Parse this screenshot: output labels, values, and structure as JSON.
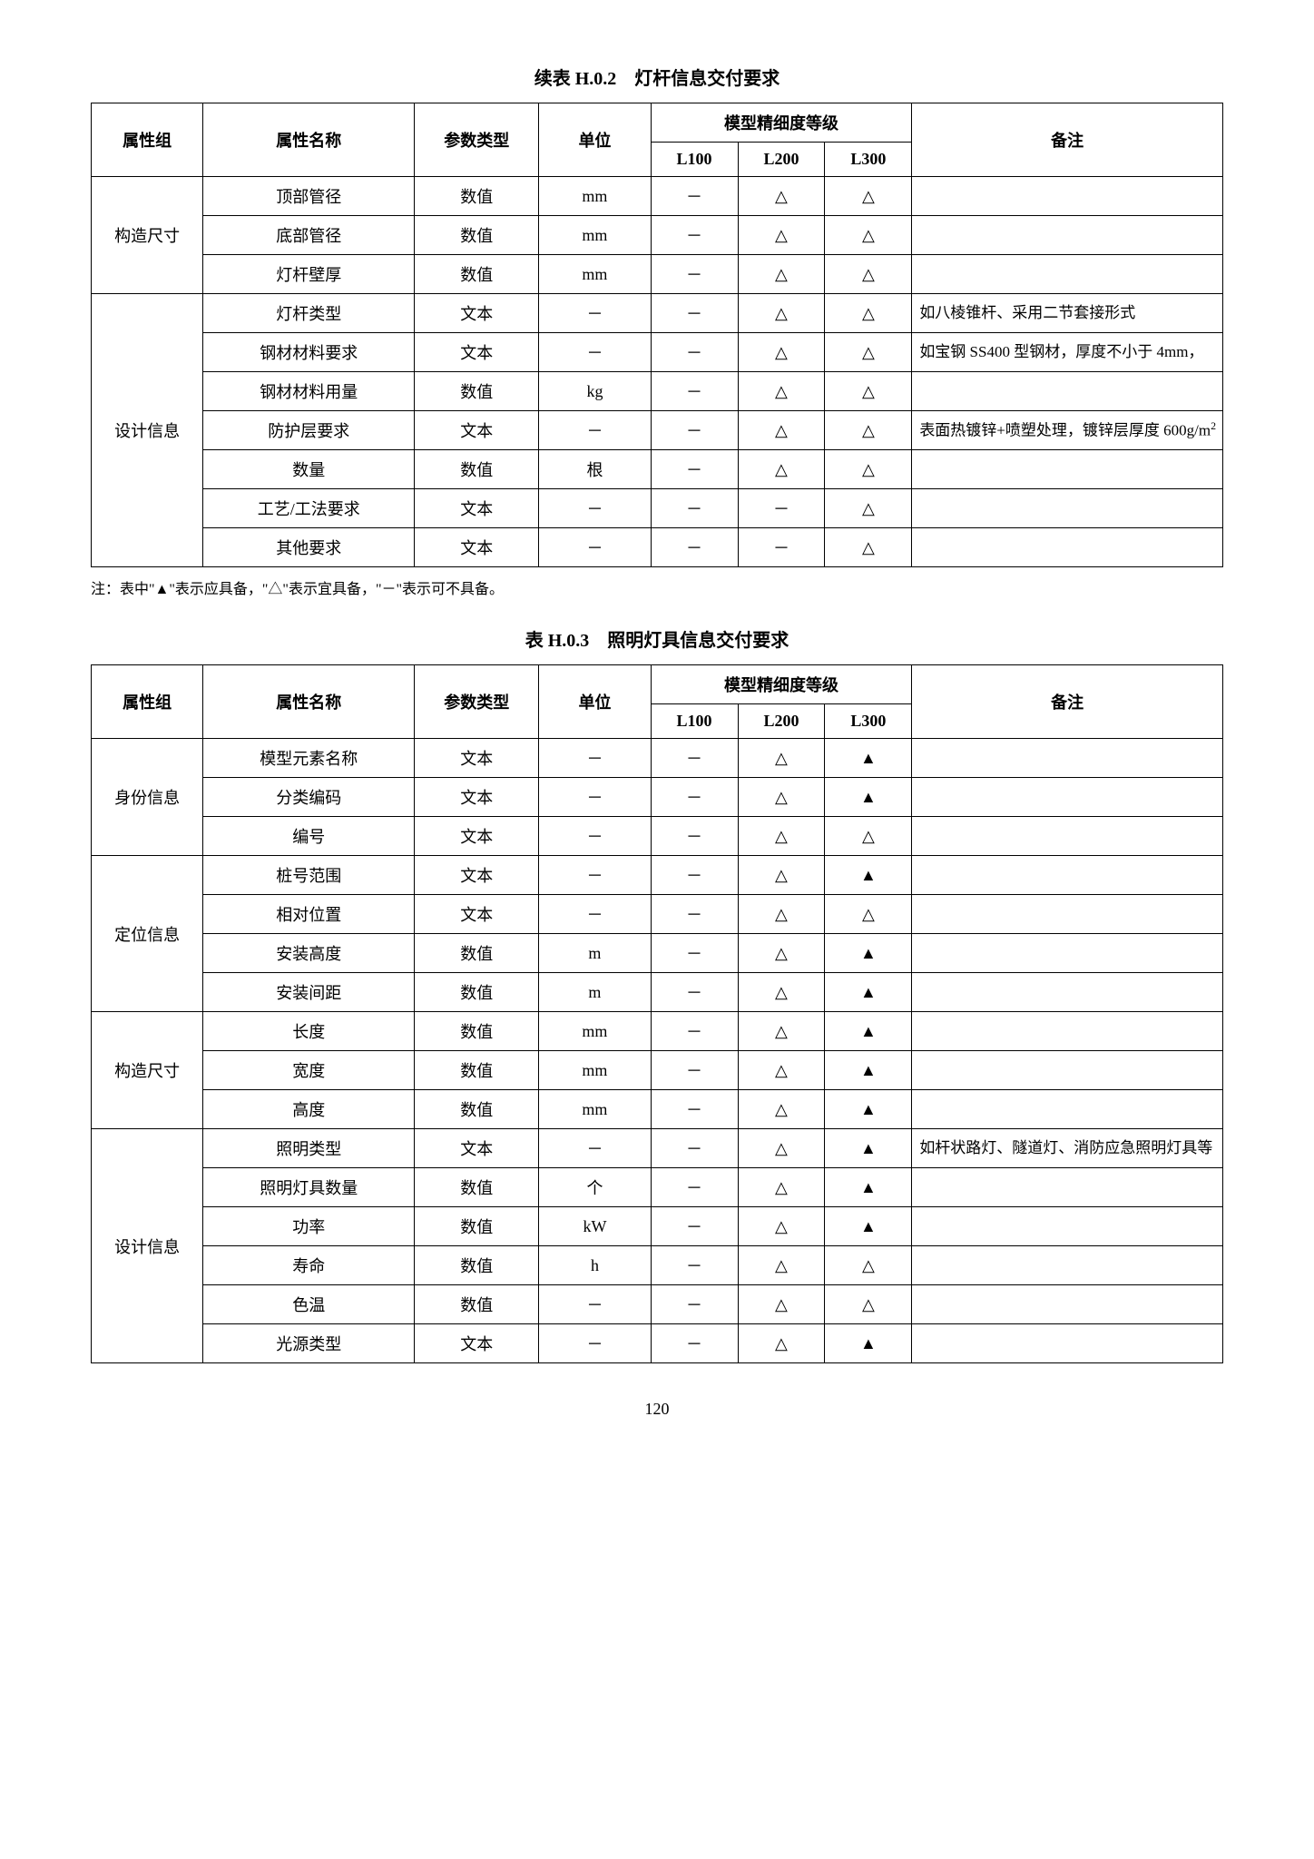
{
  "page_number": "120",
  "note_text": "注：表中\"▲\"表示应具备，\"△\"表示宜具备，\"－\"表示可不具备。",
  "columns": {
    "group": "属性组",
    "name": "属性名称",
    "type": "参数类型",
    "unit": "单位",
    "level_header": "模型精细度等级",
    "l100": "L100",
    "l200": "L200",
    "l300": "L300",
    "remark": "备注"
  },
  "symbols": {
    "dash": "－",
    "triangle": "△",
    "filled": "▲"
  },
  "table1": {
    "title": "续表 H.0.2　灯杆信息交付要求",
    "groups": [
      {
        "label": "构造尺寸",
        "rows": [
          {
            "name": "顶部管径",
            "type": "数值",
            "unit": "mm",
            "l100": "－",
            "l200": "△",
            "l300": "△",
            "remark": ""
          },
          {
            "name": "底部管径",
            "type": "数值",
            "unit": "mm",
            "l100": "－",
            "l200": "△",
            "l300": "△",
            "remark": ""
          },
          {
            "name": "灯杆壁厚",
            "type": "数值",
            "unit": "mm",
            "l100": "－",
            "l200": "△",
            "l300": "△",
            "remark": ""
          }
        ]
      },
      {
        "label": "设计信息",
        "rows": [
          {
            "name": "灯杆类型",
            "type": "文本",
            "unit": "－",
            "l100": "－",
            "l200": "△",
            "l300": "△",
            "remark": "如八棱锥杆、采用二节套接形式"
          },
          {
            "name": "钢材材料要求",
            "type": "文本",
            "unit": "－",
            "l100": "－",
            "l200": "△",
            "l300": "△",
            "remark": "如宝钢 SS400 型钢材，厚度不小于 4mm，"
          },
          {
            "name": "钢材材料用量",
            "type": "数值",
            "unit": "kg",
            "l100": "－",
            "l200": "△",
            "l300": "△",
            "remark": ""
          },
          {
            "name": "防护层要求",
            "type": "文本",
            "unit": "－",
            "l100": "－",
            "l200": "△",
            "l300": "△",
            "remark_html": "表面热镀锌+喷塑处理，镀锌层厚度 600g/m<sup>2</sup>"
          },
          {
            "name": "数量",
            "type": "数值",
            "unit": "根",
            "l100": "－",
            "l200": "△",
            "l300": "△",
            "remark": ""
          },
          {
            "name": "工艺/工法要求",
            "type": "文本",
            "unit": "－",
            "l100": "－",
            "l200": "－",
            "l300": "△",
            "remark": ""
          },
          {
            "name": "其他要求",
            "type": "文本",
            "unit": "－",
            "l100": "－",
            "l200": "－",
            "l300": "△",
            "remark": ""
          }
        ]
      }
    ]
  },
  "table2": {
    "title": "表 H.0.3　照明灯具信息交付要求",
    "groups": [
      {
        "label": "身份信息",
        "rows": [
          {
            "name": "模型元素名称",
            "type": "文本",
            "unit": "－",
            "l100": "－",
            "l200": "△",
            "l300": "▲",
            "remark": ""
          },
          {
            "name": "分类编码",
            "type": "文本",
            "unit": "－",
            "l100": "－",
            "l200": "△",
            "l300": "▲",
            "remark": ""
          },
          {
            "name": "编号",
            "type": "文本",
            "unit": "－",
            "l100": "－",
            "l200": "△",
            "l300": "△",
            "remark": ""
          }
        ]
      },
      {
        "label": "定位信息",
        "rows": [
          {
            "name": "桩号范围",
            "type": "文本",
            "unit": "－",
            "l100": "－",
            "l200": "△",
            "l300": "▲",
            "remark": ""
          },
          {
            "name": "相对位置",
            "type": "文本",
            "unit": "－",
            "l100": "－",
            "l200": "△",
            "l300": "△",
            "remark": ""
          },
          {
            "name": "安装高度",
            "type": "数值",
            "unit": "m",
            "l100": "－",
            "l200": "△",
            "l300": "▲",
            "remark": ""
          },
          {
            "name": "安装间距",
            "type": "数值",
            "unit": "m",
            "l100": "－",
            "l200": "△",
            "l300": "▲",
            "remark": ""
          }
        ]
      },
      {
        "label": "构造尺寸",
        "rows": [
          {
            "name": "长度",
            "type": "数值",
            "unit": "mm",
            "l100": "－",
            "l200": "△",
            "l300": "▲",
            "remark": ""
          },
          {
            "name": "宽度",
            "type": "数值",
            "unit": "mm",
            "l100": "－",
            "l200": "△",
            "l300": "▲",
            "remark": ""
          },
          {
            "name": "高度",
            "type": "数值",
            "unit": "mm",
            "l100": "－",
            "l200": "△",
            "l300": "▲",
            "remark": ""
          }
        ]
      },
      {
        "label": "设计信息",
        "rows": [
          {
            "name": "照明类型",
            "type": "文本",
            "unit": "－",
            "l100": "－",
            "l200": "△",
            "l300": "▲",
            "remark": "如杆状路灯、隧道灯、消防应急照明灯具等"
          },
          {
            "name": "照明灯具数量",
            "type": "数值",
            "unit": "个",
            "l100": "－",
            "l200": "△",
            "l300": "▲",
            "remark": ""
          },
          {
            "name": "功率",
            "type": "数值",
            "unit": "kW",
            "l100": "－",
            "l200": "△",
            "l300": "▲",
            "remark": ""
          },
          {
            "name": "寿命",
            "type": "数值",
            "unit": "h",
            "l100": "－",
            "l200": "△",
            "l300": "△",
            "remark": ""
          },
          {
            "name": "色温",
            "type": "数值",
            "unit": "－",
            "l100": "－",
            "l200": "△",
            "l300": "△",
            "remark": ""
          },
          {
            "name": "光源类型",
            "type": "文本",
            "unit": "－",
            "l100": "－",
            "l200": "△",
            "l300": "▲",
            "remark": ""
          }
        ]
      }
    ]
  }
}
